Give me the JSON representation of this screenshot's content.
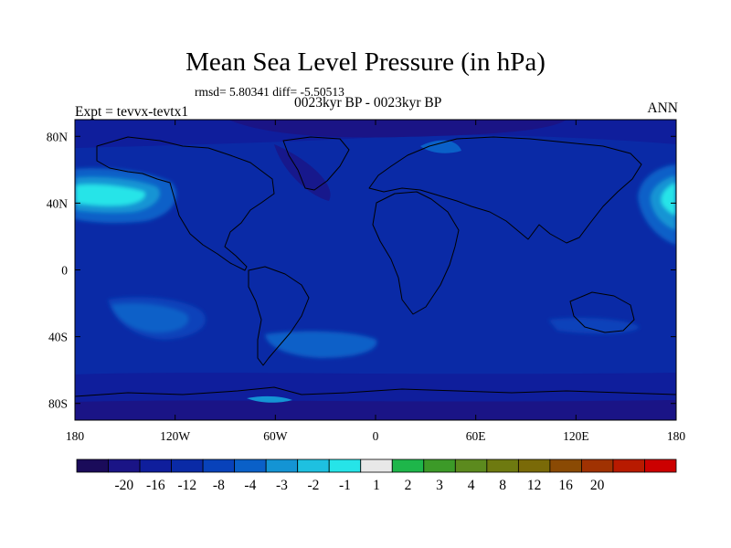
{
  "chart_data": {
    "type": "heatmap",
    "title": "Mean Sea Level Pressure (in hPa)",
    "stats_text": "rmsd= 5.80341 diff= -5.50513",
    "subtitle": "0023kyr BP - 0023kyr BP",
    "left_label": "Expt = tevvx-tevtx1",
    "right_label": "ANN",
    "x_axis": {
      "ticks": [
        -180,
        -120,
        -60,
        0,
        60,
        120,
        180
      ],
      "tick_labels": [
        "180",
        "120W",
        "60W",
        "0",
        "60E",
        "120E",
        "180"
      ]
    },
    "y_axis": {
      "ticks": [
        80,
        40,
        0,
        -40,
        -80
      ],
      "tick_labels": [
        "80N",
        "40N",
        "0",
        "40S",
        "80S"
      ],
      "range": [
        -90,
        90
      ]
    },
    "colorbar": {
      "levels": [
        "-20",
        "-16",
        "-12",
        "-8",
        "-4",
        "-3",
        "-2",
        "-1",
        "1",
        "2",
        "3",
        "4",
        "8",
        "12",
        "16",
        "20"
      ],
      "colors": [
        "#1a0b5a",
        "#1a1486",
        "#0f1e9c",
        "#0a2aa6",
        "#0842ba",
        "#0a60c8",
        "#1494d4",
        "#1ec0e0",
        "#26e4e8",
        "#e8e8e8",
        "#1eb64a",
        "#3c9a28",
        "#5c8a1e",
        "#6e7a10",
        "#7a6a08",
        "#8a4a04",
        "#a03202",
        "#b81a00",
        "#cc0000"
      ]
    },
    "regions": [
      {
        "name": "background",
        "level": "-12 to -8"
      },
      {
        "name": "north-pacific",
        "level": "-1 to 1"
      },
      {
        "name": "south-pacific",
        "level": "-4 to -3"
      },
      {
        "name": "south-atlantic",
        "level": "-4 to -3"
      },
      {
        "name": "arctic",
        "level": "-16 to -12"
      },
      {
        "name": "southern-ocean",
        "level": "-16 to -12"
      }
    ]
  }
}
